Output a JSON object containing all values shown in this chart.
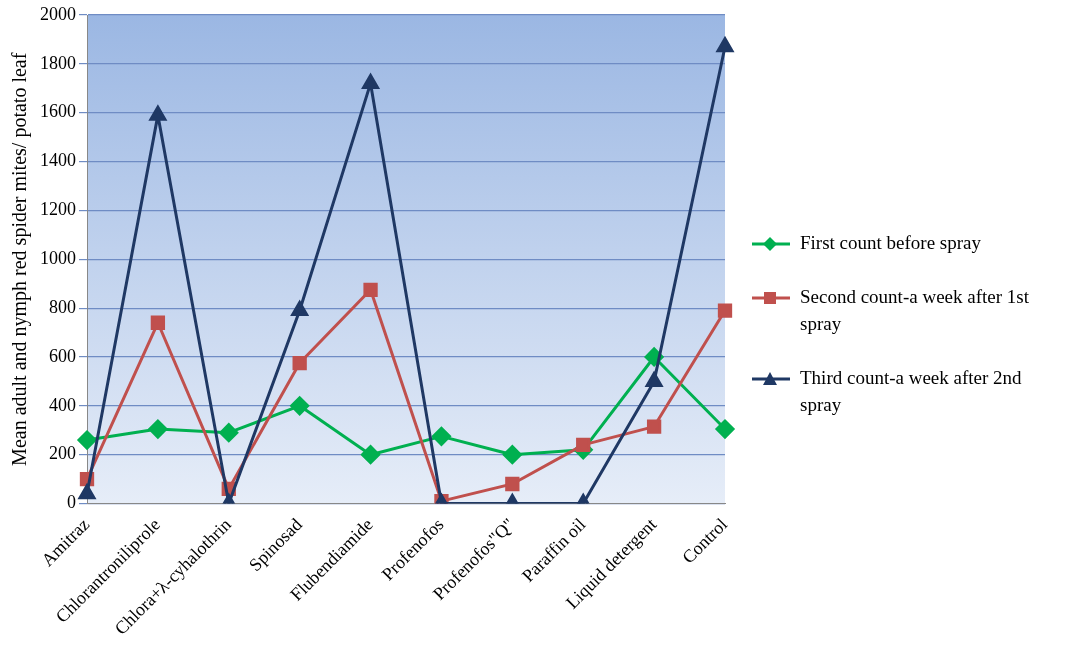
{
  "chart_data": {
    "type": "line",
    "ylabel": "Mean adult and nymph red spider mites/ potato leaf",
    "categories": [
      "Amitraz",
      "Chlorantroniliprole",
      "Chlora+λ-cyhalothrin",
      "Spinosad",
      "Flubendiamide",
      "Profenofos",
      "Profenofos\"Q\"",
      "Paraffin oil",
      "Liquid detergent",
      "Control"
    ],
    "series": [
      {
        "name": "First count before spray",
        "color": "#00b050",
        "marker": "diamond",
        "values": [
          260,
          305,
          290,
          400,
          200,
          275,
          200,
          220,
          600,
          305
        ]
      },
      {
        "name": "Second count-a week after 1st spray",
        "color": "#c0504d",
        "marker": "square",
        "values": [
          100,
          740,
          60,
          575,
          875,
          10,
          80,
          240,
          315,
          790
        ]
      },
      {
        "name": "Third count-a week after 2nd spray",
        "color": "#1f3864",
        "marker": "triangle",
        "values": [
          40,
          1590,
          0,
          790,
          1720,
          0,
          0,
          0,
          500,
          1870
        ]
      }
    ],
    "ylim": [
      0,
      2000
    ],
    "yticks": [
      0,
      200,
      400,
      600,
      800,
      1000,
      1200,
      1400,
      1600,
      1800,
      2000
    ],
    "grid": "y",
    "legend": "right",
    "line_style": "solid"
  }
}
